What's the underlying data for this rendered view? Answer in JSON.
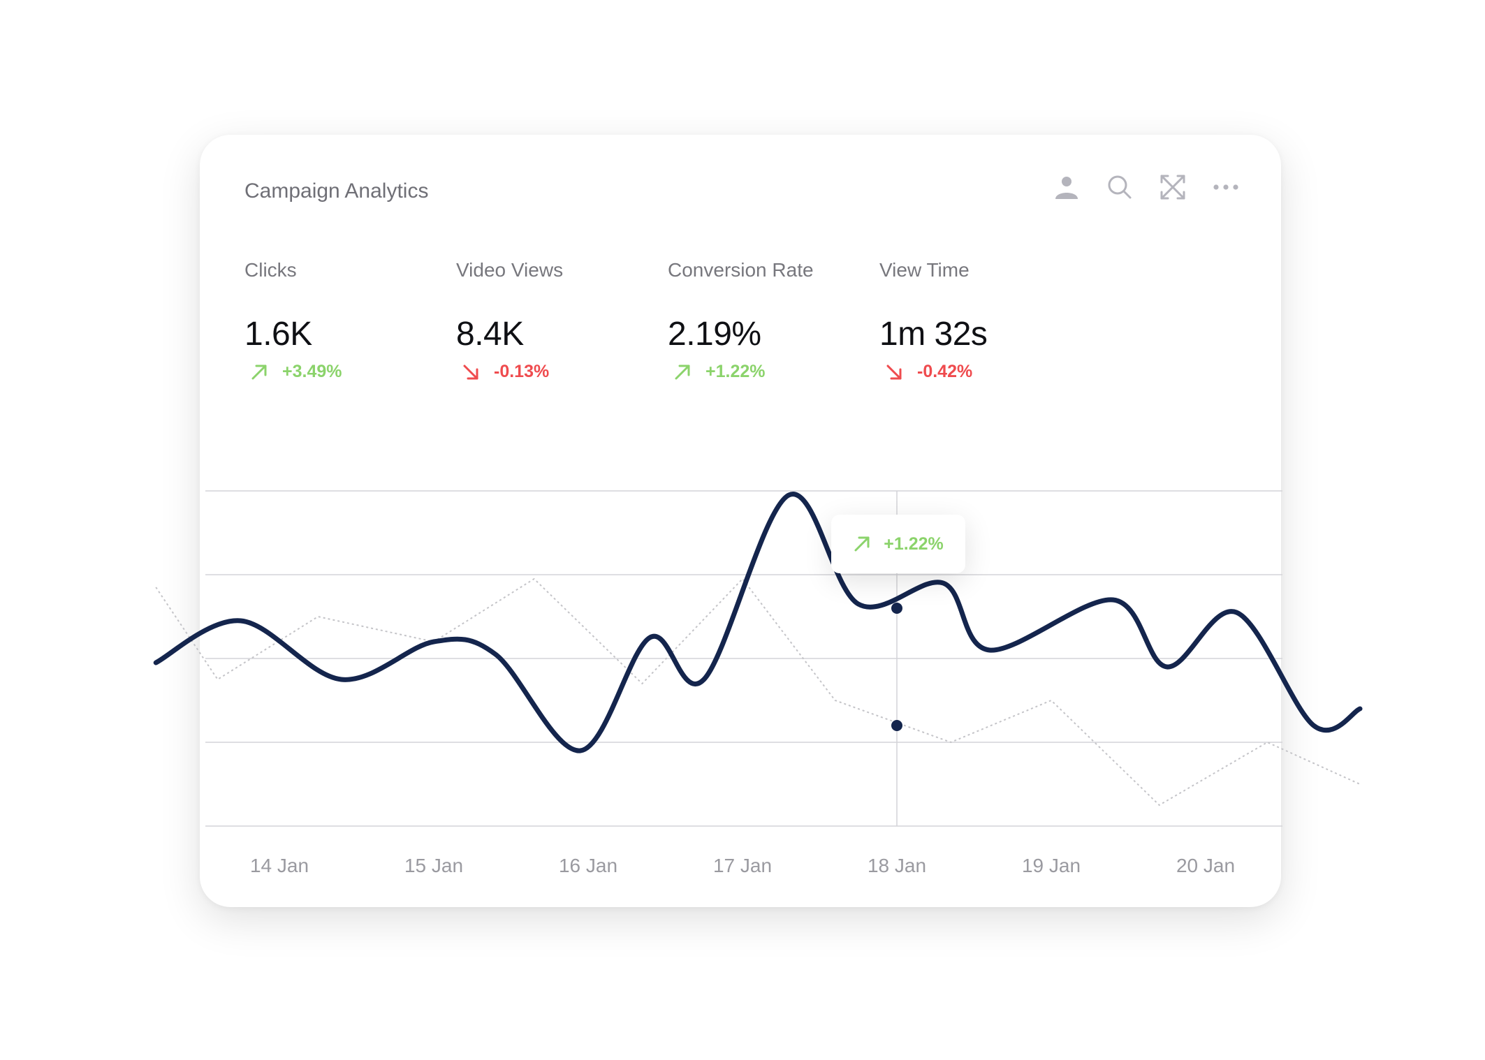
{
  "title": "Campaign Analytics",
  "toolbar": {
    "icons": [
      "user-icon",
      "search-icon",
      "expand-icon",
      "more-icon"
    ]
  },
  "metrics": [
    {
      "label": "Clicks",
      "value": "1.6K",
      "change": "+3.49%",
      "direction": "up"
    },
    {
      "label": "Video Views",
      "value": "8.4K",
      "change": "-0.13%",
      "direction": "down"
    },
    {
      "label": "Conversion Rate",
      "value": "2.19%",
      "change": "+1.22%",
      "direction": "up"
    },
    {
      "label": "View Time",
      "value": "1m 32s",
      "change": "-0.42%",
      "direction": "down"
    }
  ],
  "tooltip": {
    "change": "+1.22%",
    "direction": "up"
  },
  "colors": {
    "primary_line": "#14254d",
    "secondary_line": "#c4c4c8",
    "up": "#8bd36b",
    "down": "#ef4b4e",
    "grid": "#d4d4d8"
  },
  "chart_data": {
    "type": "line",
    "x": [
      "14 Jan",
      "15 Jan",
      "16 Jan",
      "17 Jan",
      "18 Jan",
      "19 Jan",
      "20 Jan"
    ],
    "series": [
      {
        "style": "solid-smooth",
        "x": [
          13.2,
          13.75,
          14.4,
          15.0,
          15.4,
          15.95,
          16.4,
          16.75,
          17.3,
          17.75,
          18.3,
          18.6,
          19.4,
          19.75,
          20.2,
          20.7,
          21.0
        ],
        "y": [
          1.95,
          2.45,
          1.75,
          2.2,
          2.05,
          0.9,
          2.25,
          1.75,
          3.95,
          2.65,
          2.9,
          2.1,
          2.7,
          1.9,
          2.55,
          1.2,
          1.4
        ]
      },
      {
        "style": "dotted",
        "x": [
          13.2,
          13.6,
          14.25,
          15.0,
          15.65,
          16.35,
          17.0,
          17.6,
          18.35,
          19.0,
          19.7,
          20.4,
          21.0
        ],
        "y": [
          2.85,
          1.75,
          2.5,
          2.2,
          2.95,
          1.7,
          2.95,
          1.5,
          1.0,
          1.5,
          0.25,
          1.0,
          0.5
        ]
      }
    ],
    "highlight": {
      "x": 18.0,
      "values": [
        2.6,
        1.2
      ]
    },
    "ylim": [
      0,
      4
    ],
    "grid": true
  }
}
